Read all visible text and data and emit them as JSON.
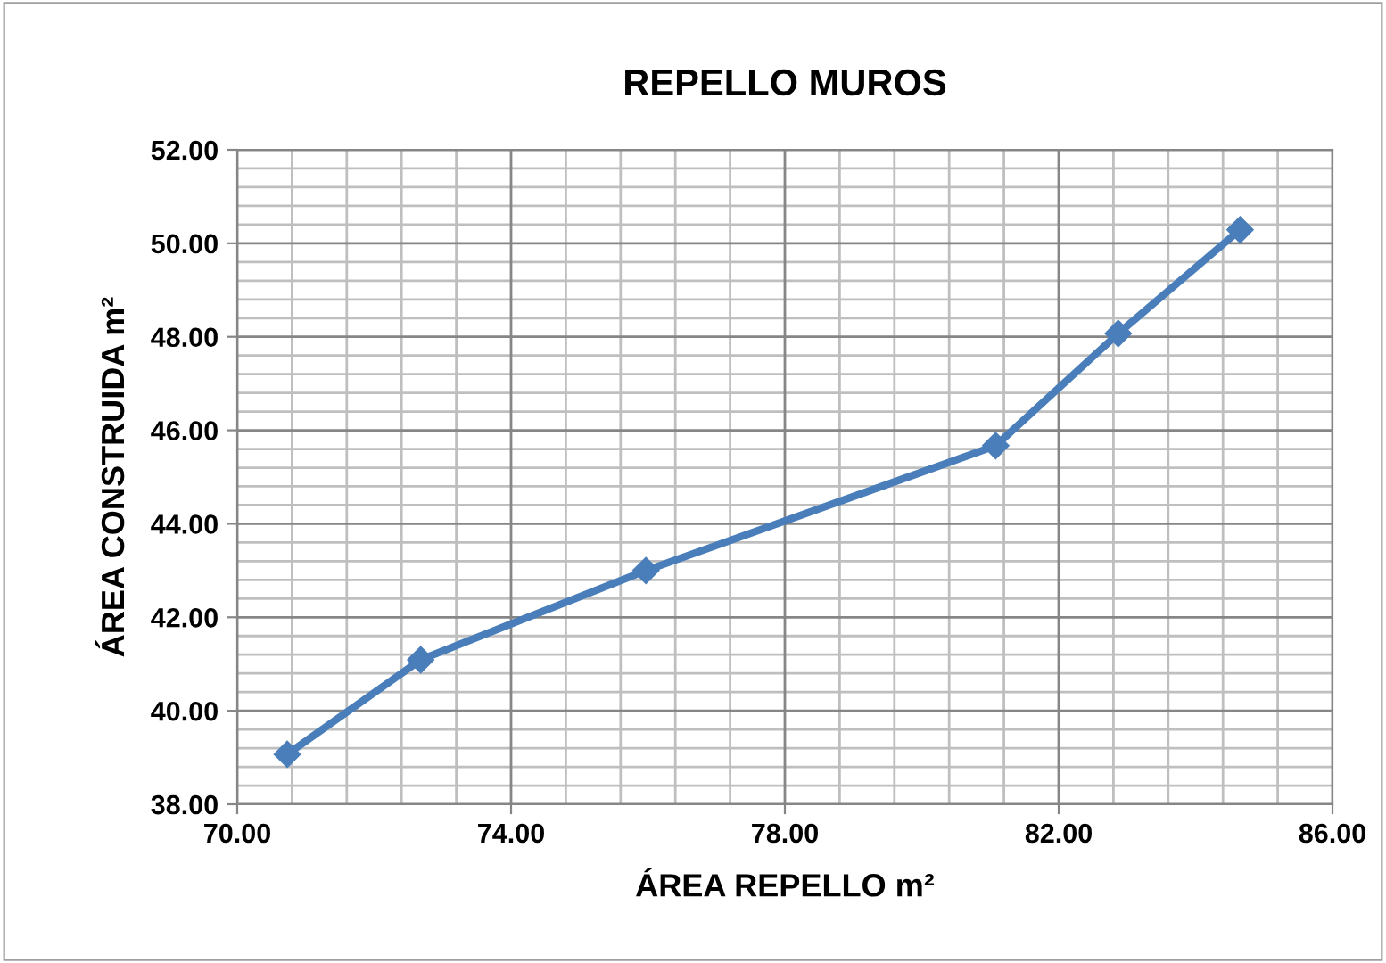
{
  "chart_data": {
    "type": "line",
    "title": "REPELLO MUROS",
    "xlabel": "ÁREA REPELLO m²",
    "ylabel": "ÁREA CONSTRUIDA m²",
    "x": [
      70.73,
      72.68,
      75.97,
      81.08,
      82.87,
      84.65
    ],
    "series": [
      {
        "color": "#4a7ebb",
        "values": [
          39.07,
          41.09,
          43.0,
          45.67,
          48.07,
          50.29
        ]
      }
    ],
    "xlim": [
      70,
      86
    ],
    "ylim": [
      38,
      52
    ],
    "xticks": [
      {
        "value": 70,
        "label": "70.00"
      },
      {
        "value": 74,
        "label": "74.00"
      },
      {
        "value": 78,
        "label": "78.00"
      },
      {
        "value": 82,
        "label": "82.00"
      },
      {
        "value": 86,
        "label": "86.00"
      }
    ],
    "yticks": [
      {
        "value": 38,
        "label": "38.00"
      },
      {
        "value": 40,
        "label": "40.00"
      },
      {
        "value": 42,
        "label": "42.00"
      },
      {
        "value": 44,
        "label": "44.00"
      },
      {
        "value": 46,
        "label": "46.00"
      },
      {
        "value": 48,
        "label": "48.00"
      },
      {
        "value": 50,
        "label": "50.00"
      },
      {
        "value": 52,
        "label": "52.00"
      }
    ],
    "grid": true,
    "marker": "diamond",
    "line_style": "solid",
    "legend": false
  }
}
